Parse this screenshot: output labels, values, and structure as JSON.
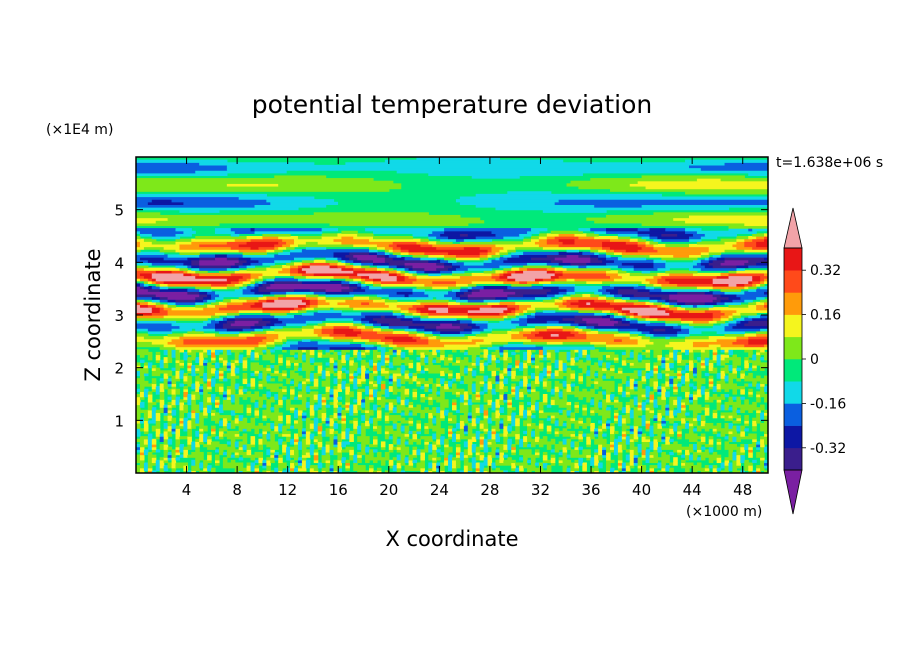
{
  "chart_data": {
    "type": "heatmap",
    "title": "potential temperature deviation",
    "xlabel": "X coordinate",
    "ylabel": "Z coordinate",
    "x_unit": "(×1000 m)",
    "y_unit": "(×1E4 m)",
    "time_label": "t=1.638e+06 s",
    "xlim": [
      0,
      50
    ],
    "ylim": [
      0,
      6
    ],
    "x_ticks": [
      4,
      8,
      12,
      16,
      20,
      24,
      28,
      32,
      36,
      40,
      44,
      48
    ],
    "y_ticks": [
      1,
      2,
      3,
      4,
      5
    ],
    "colorbar": {
      "levels": [
        -0.4,
        -0.32,
        -0.24,
        -0.16,
        -0.08,
        0,
        0.08,
        0.16,
        0.24,
        0.32,
        0.4
      ],
      "labels": [
        "0.32",
        "0.16",
        "0",
        "-0.16",
        "-0.32"
      ],
      "label_values": [
        0.32,
        0.16,
        0,
        -0.16,
        -0.32
      ],
      "extend": "both",
      "colors_low_to_high": [
        "#7a1fa2",
        "#3a1e8c",
        "#0d17a4",
        "#0a5fe0",
        "#11d9e8",
        "#00e97a",
        "#7ee81a",
        "#f5f51e",
        "#ff9b0a",
        "#ff4a1a",
        "#e81616",
        "#f2a3a8"
      ]
    },
    "regions": [
      {
        "name": "lower-layer",
        "z_range": [
          0,
          2.4
        ],
        "pattern": "fine small-scale noise, values near 0 (-0.08 to 0.08)"
      },
      {
        "name": "wave-layer",
        "z_range": [
          2.4,
          4.6
        ],
        "pattern": "strong horizontal wave bands, values -0.4 to 0.4"
      },
      {
        "name": "upper-layer",
        "z_range": [
          4.6,
          6
        ],
        "pattern": "weak broad bands, values -0.2 to 0.1"
      }
    ]
  }
}
